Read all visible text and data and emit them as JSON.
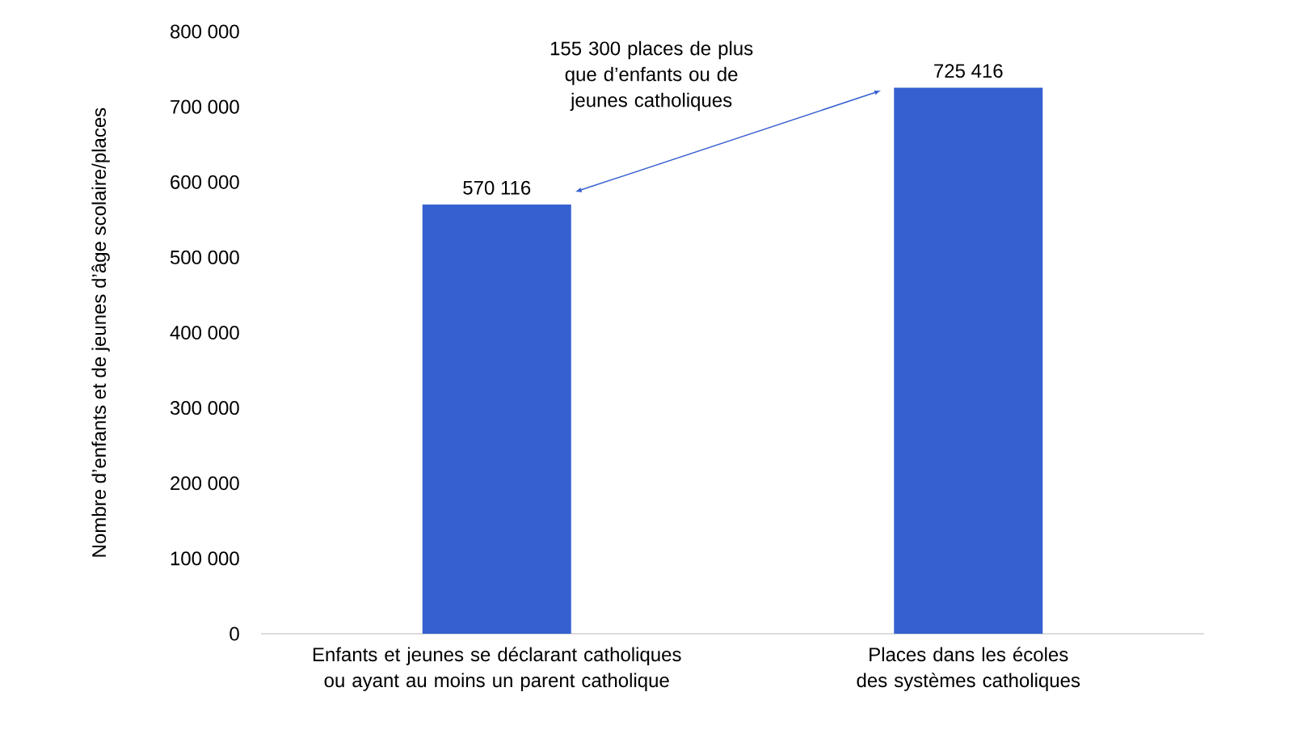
{
  "chart_data": {
    "type": "bar",
    "ylabel": "Nombre d’enfants et de jeunes d’âge scolaire/places",
    "categories": [
      "Enfants et jeunes se déclarant catholiques ou ayant au moins un parent catholique",
      "Places dans les écoles des systèmes catholiques"
    ],
    "values": [
      570116,
      725416
    ],
    "value_labels": [
      "570 116",
      "725 416"
    ],
    "color": "#3660d0",
    "ylim": [
      0,
      800000
    ],
    "yticks": [
      {
        "value": 0,
        "label": "0"
      },
      {
        "value": 100000,
        "label": "100 000"
      },
      {
        "value": 200000,
        "label": "200 000"
      },
      {
        "value": 300000,
        "label": "300 000"
      },
      {
        "value": 400000,
        "label": "400 000"
      },
      {
        "value": 500000,
        "label": "500 000"
      },
      {
        "value": 600000,
        "label": "600 000"
      },
      {
        "value": 700000,
        "label": "700 000"
      },
      {
        "value": 800000,
        "label": "800 000"
      }
    ],
    "grid": false,
    "annotations": [
      "155 300 places de plus que d’enfants ou de jeunes catholiques"
    ]
  }
}
